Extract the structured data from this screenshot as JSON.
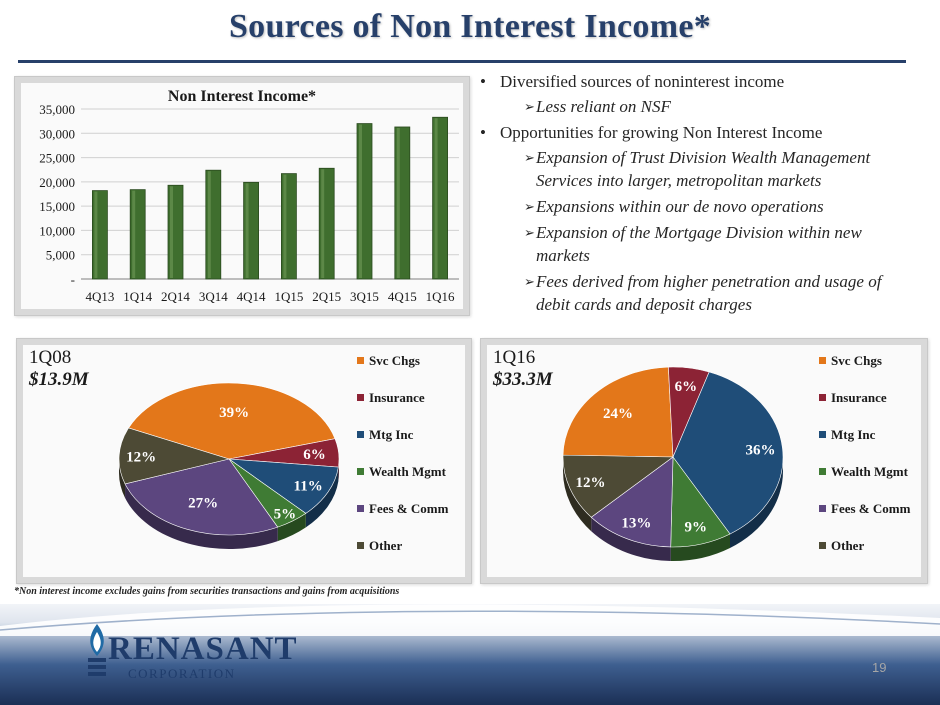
{
  "slide": {
    "title": "Sources of Non Interest Income*",
    "footnote": "*Non interest income excludes gains from securities transactions and gains from acquisitions",
    "page_number": "19",
    "logo": {
      "name": "RENASANT",
      "sub": "CORPORATION"
    }
  },
  "bullets": [
    {
      "level": 1,
      "text": "Diversified sources of noninterest income"
    },
    {
      "level": 2,
      "text": "Less reliant on NSF"
    },
    {
      "level": 1,
      "text": "Opportunities for growing Non Interest Income"
    },
    {
      "level": 2,
      "text": "Expansion of Trust Division Wealth Management Services into larger, metropolitan markets"
    },
    {
      "level": 2,
      "text": "Expansions within our de novo operations"
    },
    {
      "level": 2,
      "text": "Expansion of the Mortgage Division within new markets"
    },
    {
      "level": 2,
      "text": "Fees derived from higher penetration and usage of debit cards and deposit charges"
    }
  ],
  "colors": {
    "title": "#27406a",
    "bar": "#3f6e2e",
    "svc": "#e3771a",
    "ins": "#8c2335",
    "mtg": "#1f4d78",
    "wealth": "#3f7b34",
    "fees": "#5c467f",
    "other": "#4d4a35"
  },
  "chart_data": [
    {
      "type": "bar",
      "title": "Non Interest Income*",
      "categories": [
        "4Q13",
        "1Q14",
        "2Q14",
        "3Q14",
        "4Q14",
        "1Q15",
        "2Q15",
        "3Q15",
        "4Q15",
        "1Q16"
      ],
      "values": [
        18200,
        18400,
        19300,
        22400,
        19900,
        21700,
        22800,
        32000,
        31300,
        33300
      ],
      "ylim": [
        0,
        35000
      ],
      "yticks": [
        "-",
        "5,000",
        "10,000",
        "15,000",
        "20,000",
        "25,000",
        "30,000",
        "35,000"
      ],
      "xlabel": "",
      "ylabel": ""
    },
    {
      "type": "pie",
      "title": "1Q08",
      "subtitle": "$13.9M",
      "categories": [
        "Svc Chgs",
        "Insurance",
        "Mtg Inc",
        "Wealth Mgmt",
        "Fees & Comm",
        "Other"
      ],
      "values": [
        39,
        6,
        11,
        5,
        27,
        12
      ],
      "labels": [
        "39%",
        "6%",
        "11%",
        "5%",
        "27%",
        "12%"
      ]
    },
    {
      "type": "pie",
      "title": "1Q16",
      "subtitle": "$33.3M",
      "categories": [
        "Svc Chgs",
        "Insurance",
        "Mtg Inc",
        "Wealth Mgmt",
        "Fees & Comm",
        "Other"
      ],
      "values": [
        24,
        6,
        36,
        9,
        13,
        12
      ],
      "labels": [
        "24%",
        "6%",
        "36%",
        "9%",
        "13%",
        "12%"
      ]
    }
  ]
}
